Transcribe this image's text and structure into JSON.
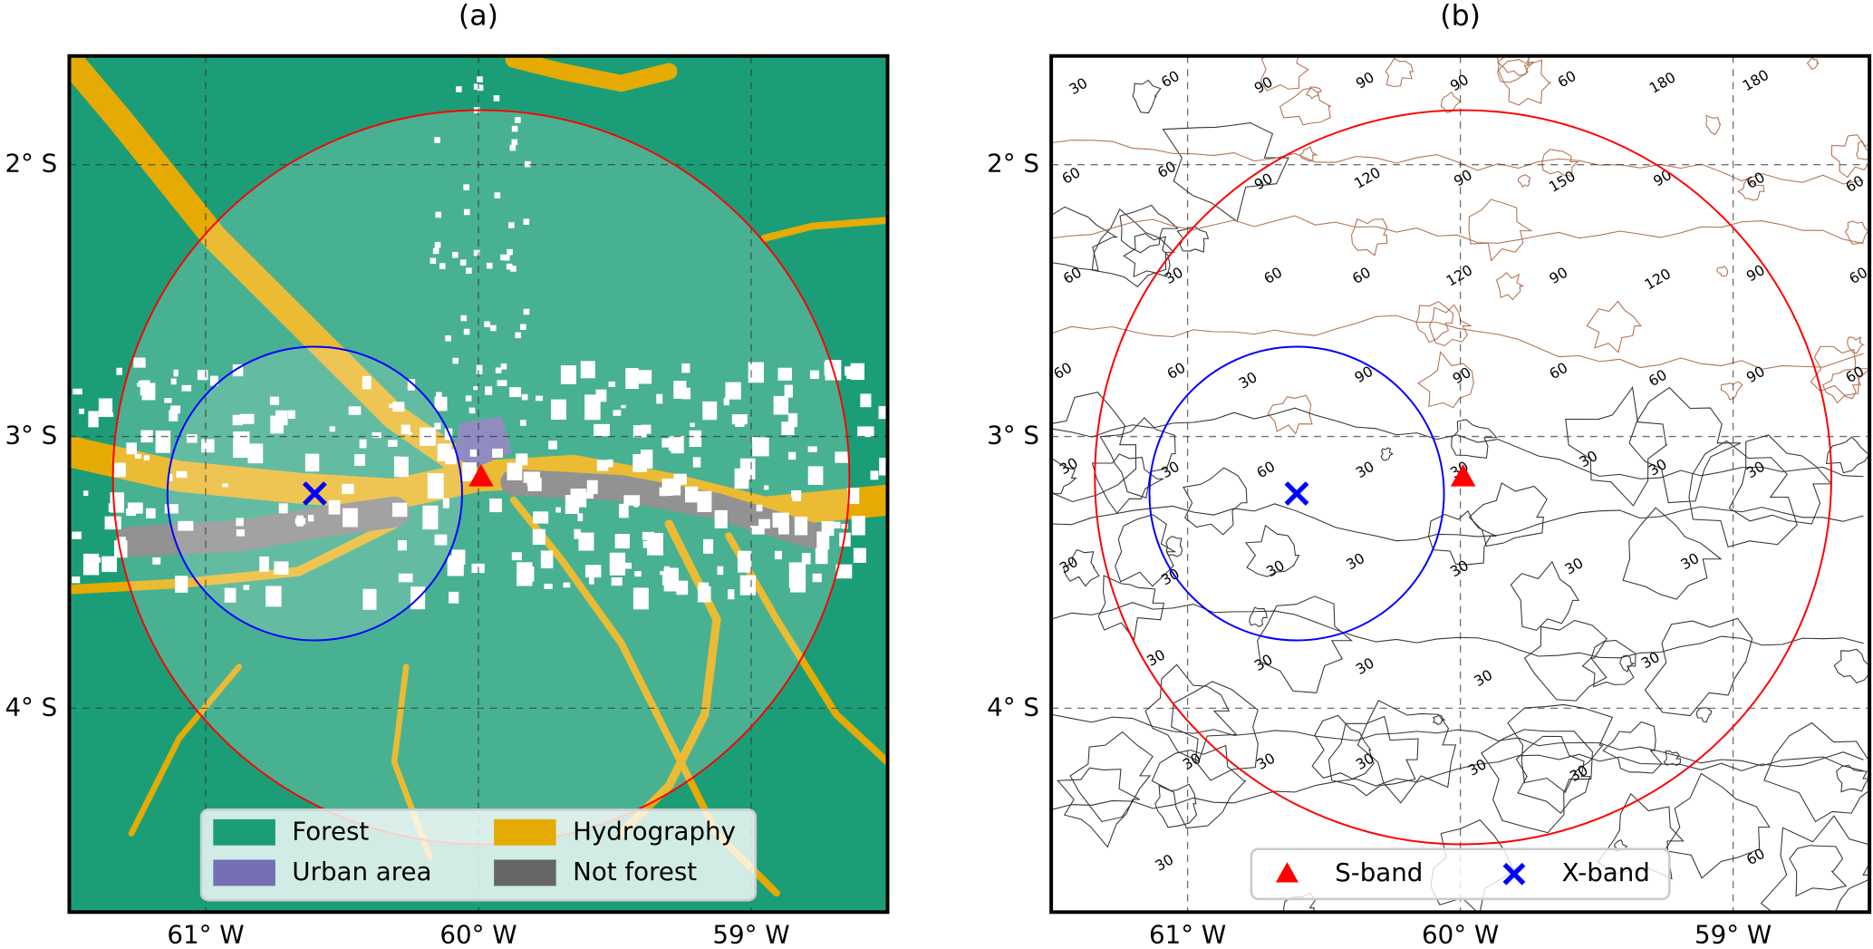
{
  "chart_data": [
    {
      "type": "landcover",
      "title": "(a)",
      "xlim": [
        -61.5,
        -58.5
      ],
      "ylim": [
        -4.75,
        -1.6
      ],
      "xticks": [
        {
          "value": -61,
          "label": "61° W"
        },
        {
          "value": -60,
          "label": "60° W"
        },
        {
          "value": -59,
          "label": "59° W"
        }
      ],
      "yticks": [
        {
          "value": -2,
          "label": "2° S"
        },
        {
          "value": -3,
          "label": "3° S"
        },
        {
          "value": -4,
          "label": "4° S"
        }
      ],
      "grid": true,
      "markers": [
        {
          "lon": -59.99,
          "lat": -3.15,
          "color": "#ff0000",
          "symbol": "triangle"
        },
        {
          "lon": -60.6,
          "lat": -3.21,
          "color": "#0000ff",
          "symbol": "x"
        }
      ],
      "circles": [
        {
          "lon": -59.99,
          "lat": -3.15,
          "radius": 1.35,
          "color": "#ff0000"
        },
        {
          "lon": -60.6,
          "lat": -3.21,
          "radius": 0.54,
          "color": "#0000ff"
        }
      ],
      "legend": [
        {
          "name": "Forest",
          "color": "#1b9e77"
        },
        {
          "name": "Hydrography",
          "color": "#e6ab02"
        },
        {
          "name": "Urban area",
          "color": "#7570b3"
        },
        {
          "name": "Not forest",
          "color": "#666666"
        }
      ],
      "legend_position": "lower center"
    },
    {
      "type": "contour",
      "title": "(b)",
      "xlim": [
        -61.5,
        -58.5
      ],
      "ylim": [
        -4.75,
        -1.6
      ],
      "xticks": [
        {
          "value": -61,
          "label": "61° W"
        },
        {
          "value": -60,
          "label": "60° W"
        },
        {
          "value": -59,
          "label": "59° W"
        }
      ],
      "yticks": [
        {
          "value": -2,
          "label": "2° S"
        },
        {
          "value": -3,
          "label": "3° S"
        },
        {
          "value": -4,
          "label": "4° S"
        }
      ],
      "grid": true,
      "markers": [
        {
          "name": "S-band",
          "lon": -59.99,
          "lat": -3.15,
          "color": "#ff0000",
          "symbol": "triangle"
        },
        {
          "name": "X-band",
          "lon": -60.6,
          "lat": -3.21,
          "color": "#0000ff",
          "symbol": "x"
        }
      ],
      "circles": [
        {
          "lon": -59.99,
          "lat": -3.15,
          "radius": 1.35,
          "color": "#ff0000"
        },
        {
          "lon": -60.6,
          "lat": -3.21,
          "radius": 0.54,
          "color": "#0000ff"
        }
      ],
      "contour_labels": [
        30,
        60,
        90,
        90,
        90,
        60,
        180,
        180,
        60,
        60,
        90,
        120,
        90,
        150,
        90,
        60,
        60,
        60,
        30,
        60,
        60,
        120,
        90,
        120,
        90,
        60,
        60,
        60,
        30,
        90,
        90,
        60,
        60,
        90,
        60,
        30,
        30,
        60,
        30,
        30,
        30,
        30,
        30,
        30,
        30,
        30,
        30,
        30,
        30,
        30,
        30,
        30,
        30,
        30,
        30,
        30,
        30,
        30,
        30,
        30,
        30,
        60
      ],
      "legend_position": "lower center"
    }
  ]
}
